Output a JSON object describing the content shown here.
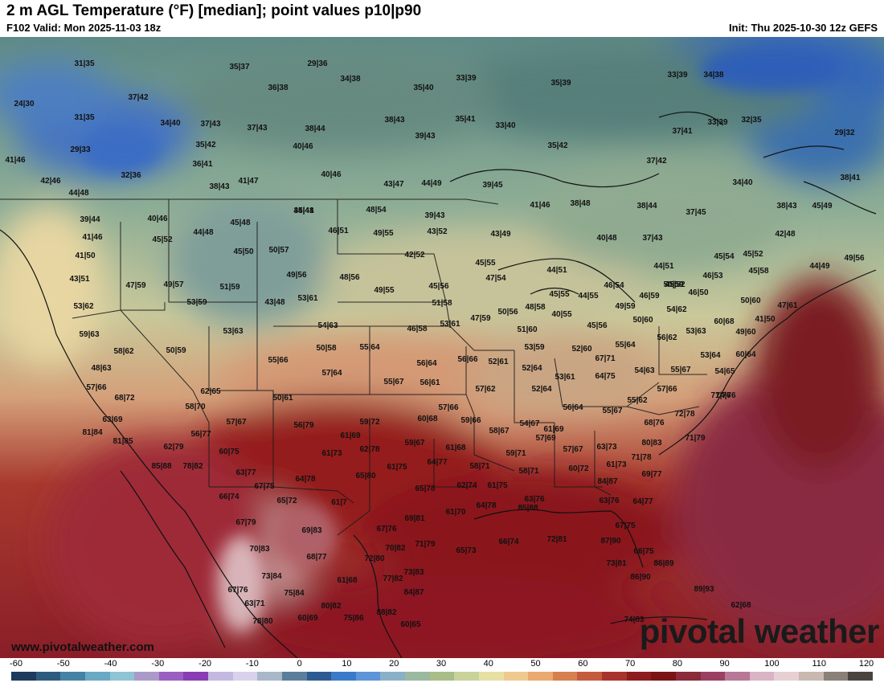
{
  "header": {
    "title": "2 m AGL Temperature (°F) [median]; point values p10|p90",
    "valid": "F102 Valid: Mon 2025-11-03 18z",
    "init": "Init: Thu 2025-10-30 12z GEFS"
  },
  "footer": {
    "website": "www.pivotalweather.com",
    "brand": "pivotal weather"
  },
  "colorbar": {
    "unit_range": [
      -60,
      120
    ],
    "labels": [
      "-60",
      "-50",
      "-40",
      "-30",
      "-20",
      "-10",
      "0",
      "10",
      "20",
      "30",
      "40",
      "50",
      "60",
      "70",
      "80",
      "90",
      "100",
      "110",
      "120"
    ],
    "colors": [
      "#1e3a5c",
      "#2d5b7e",
      "#4682a5",
      "#6aa8c4",
      "#8fc4d4",
      "#aa9ac8",
      "#9a5fc0",
      "#8a3cb4",
      "#c3b9e0",
      "#d8d3ea",
      "#a9b8c8",
      "#5b7e9a",
      "#2e5a92",
      "#3b7ac8",
      "#5e94d8",
      "#8ab0c8",
      "#9bb8a0",
      "#a8bd88",
      "#c9d29a",
      "#e7e0a4",
      "#f0c98e",
      "#e9a96f",
      "#d6804f",
      "#c65a3c",
      "#a8342c",
      "#8e1c1c",
      "#7a1414",
      "#8a2a3a",
      "#9a4060",
      "#b87898",
      "#d8b4c4",
      "#e6d0d4",
      "#c8b8b0",
      "#8a8078",
      "#4a4440"
    ]
  },
  "map_points": [
    {
      "label": "31|35"
    },
    {
      "label": "35|37"
    },
    {
      "label": "29|36"
    },
    {
      "label": "34|38"
    },
    {
      "label": "35|40"
    },
    {
      "label": "33|39"
    },
    {
      "label": "35|39"
    },
    {
      "label": "33|39"
    },
    {
      "label": "34|38"
    },
    {
      "label": "24|30"
    },
    {
      "label": "37|42"
    },
    {
      "label": "36|38"
    },
    {
      "label": "38|43"
    },
    {
      "label": "35|41"
    },
    {
      "label": "33|40"
    },
    {
      "label": "37|41"
    },
    {
      "label": "33|39"
    },
    {
      "label": "32|35"
    },
    {
      "label": "29|32"
    },
    {
      "label": "31|35"
    },
    {
      "label": "34|40"
    },
    {
      "label": "37|43"
    },
    {
      "label": "37|43"
    },
    {
      "label": "38|44"
    },
    {
      "label": "39|43"
    },
    {
      "label": "29|33"
    },
    {
      "label": "35|42"
    },
    {
      "label": "40|46"
    },
    {
      "label": "35|42"
    },
    {
      "label": "41|46"
    },
    {
      "label": "36|41"
    },
    {
      "label": "37|42"
    },
    {
      "label": "32|36"
    },
    {
      "label": "40|46"
    },
    {
      "label": "43|47"
    },
    {
      "label": "44|49"
    },
    {
      "label": "39|45"
    },
    {
      "label": "34|40"
    },
    {
      "label": "38|41"
    },
    {
      "label": "42|46"
    },
    {
      "label": "38|43"
    },
    {
      "label": "41|47"
    },
    {
      "label": "44|48"
    },
    {
      "label": "44|48"
    },
    {
      "label": "48|54"
    },
    {
      "label": "39|43"
    },
    {
      "label": "41|46"
    },
    {
      "label": "38|48"
    },
    {
      "label": "38|44"
    },
    {
      "label": "37|45"
    },
    {
      "label": "38|43"
    },
    {
      "label": "45|49"
    },
    {
      "label": "39|44"
    },
    {
      "label": "40|46"
    },
    {
      "label": "45|48"
    },
    {
      "label": "35|41"
    },
    {
      "label": "44|48"
    },
    {
      "label": "46|51"
    },
    {
      "label": "49|55"
    },
    {
      "label": "43|52"
    },
    {
      "label": "43|49"
    },
    {
      "label": "40|48"
    },
    {
      "label": "37|43"
    },
    {
      "label": "42|48"
    },
    {
      "label": "41|46"
    },
    {
      "label": "45|52"
    },
    {
      "label": "41|50"
    },
    {
      "label": "45|50"
    },
    {
      "label": "50|57"
    },
    {
      "label": "42|52"
    },
    {
      "label": "45|54"
    },
    {
      "label": "45|52"
    },
    {
      "label": "44|49"
    },
    {
      "label": "49|56"
    },
    {
      "label": "45|55"
    },
    {
      "label": "44|51"
    },
    {
      "label": "44|51"
    },
    {
      "label": "45|58"
    },
    {
      "label": "43|51"
    },
    {
      "label": "49|56"
    },
    {
      "label": "48|56"
    },
    {
      "label": "47|54"
    },
    {
      "label": "46|53"
    },
    {
      "label": "45|52"
    },
    {
      "label": "47|59"
    },
    {
      "label": "49|57"
    },
    {
      "label": "51|59"
    },
    {
      "label": "45|56"
    },
    {
      "label": "46|54"
    },
    {
      "label": "50|59"
    },
    {
      "label": "49|55"
    },
    {
      "label": "45|55"
    },
    {
      "label": "44|55"
    },
    {
      "label": "46|59"
    },
    {
      "label": "46|50"
    },
    {
      "label": "43|48"
    },
    {
      "label": "53|61"
    },
    {
      "label": "51|58"
    },
    {
      "label": "48|58"
    },
    {
      "label": "49|59"
    },
    {
      "label": "50|60"
    },
    {
      "label": "47|61"
    },
    {
      "label": "53|62"
    },
    {
      "label": "53|59"
    },
    {
      "label": "50|56"
    },
    {
      "label": "40|55"
    },
    {
      "label": "54|62"
    },
    {
      "label": "53|61"
    },
    {
      "label": "47|59"
    },
    {
      "label": "50|60"
    },
    {
      "label": "41|50"
    },
    {
      "label": "54|63"
    },
    {
      "label": "51|60"
    },
    {
      "label": "45|56"
    },
    {
      "label": "60|68"
    },
    {
      "label": "59|63"
    },
    {
      "label": "53|63"
    },
    {
      "label": "46|58"
    },
    {
      "label": "53|63"
    },
    {
      "label": "49|60"
    },
    {
      "label": "56|62"
    },
    {
      "label": "58|62"
    },
    {
      "label": "50|59"
    },
    {
      "label": "50|58"
    },
    {
      "label": "55|64"
    },
    {
      "label": "53|59"
    },
    {
      "label": "52|60"
    },
    {
      "label": "55|64"
    },
    {
      "label": "53|64"
    },
    {
      "label": "60|64"
    },
    {
      "label": "55|66"
    },
    {
      "label": "56|64"
    },
    {
      "label": "56|66"
    },
    {
      "label": "52|61"
    },
    {
      "label": "67|71"
    },
    {
      "label": "48|63"
    },
    {
      "label": "57|64"
    },
    {
      "label": "52|64"
    },
    {
      "label": "54|63"
    },
    {
      "label": "55|67"
    },
    {
      "label": "54|65"
    },
    {
      "label": "55|67"
    },
    {
      "label": "56|61"
    },
    {
      "label": "53|61"
    },
    {
      "label": "64|75"
    },
    {
      "label": "57|66"
    },
    {
      "label": "57|62"
    },
    {
      "label": "52|64"
    },
    {
      "label": "57|66"
    },
    {
      "label": "71|76"
    },
    {
      "label": "68|72"
    },
    {
      "label": "62|65"
    },
    {
      "label": "50|61"
    },
    {
      "label": "55|62"
    },
    {
      "label": "74|76"
    },
    {
      "label": "58|70"
    },
    {
      "label": "57|66"
    },
    {
      "label": "56|64"
    },
    {
      "label": "55|67"
    },
    {
      "label": "72|78"
    },
    {
      "label": "63|69"
    },
    {
      "label": "57|67"
    },
    {
      "label": "56|79"
    },
    {
      "label": "59|72"
    },
    {
      "label": "60|68"
    },
    {
      "label": "59|66"
    },
    {
      "label": "54|67"
    },
    {
      "label": "68|76"
    },
    {
      "label": "81|84"
    },
    {
      "label": "56|77"
    },
    {
      "label": "61|69"
    },
    {
      "label": "58|67"
    },
    {
      "label": "61|69"
    },
    {
      "label": "71|79"
    },
    {
      "label": "81|85"
    },
    {
      "label": "62|79"
    },
    {
      "label": "62|78"
    },
    {
      "label": "59|67"
    },
    {
      "label": "57|69"
    },
    {
      "label": "80|83"
    },
    {
      "label": "60|75"
    },
    {
      "label": "61|73"
    },
    {
      "label": "61|68"
    },
    {
      "label": "59|71"
    },
    {
      "label": "57|67"
    },
    {
      "label": "63|73"
    },
    {
      "label": "71|78"
    },
    {
      "label": "85|88"
    },
    {
      "label": "78|82"
    },
    {
      "label": "63|77"
    },
    {
      "label": "61|75"
    },
    {
      "label": "64|77"
    },
    {
      "label": "58|71"
    },
    {
      "label": "58|71"
    },
    {
      "label": "60|72"
    },
    {
      "label": "61|73"
    },
    {
      "label": "69|77"
    },
    {
      "label": "67|75"
    },
    {
      "label": "64|78"
    },
    {
      "label": "65|80"
    },
    {
      "label": "65|78"
    },
    {
      "label": "62|74"
    },
    {
      "label": "61|75"
    },
    {
      "label": "84|87"
    },
    {
      "label": "66|74"
    },
    {
      "label": "65|72"
    },
    {
      "label": "61|7"
    },
    {
      "label": "63|76"
    },
    {
      "label": "63|76"
    },
    {
      "label": "64|77"
    },
    {
      "label": "64|78"
    },
    {
      "label": "61|70"
    },
    {
      "label": "85|88"
    },
    {
      "label": "67|79"
    },
    {
      "label": "69|81"
    },
    {
      "label": "67|75"
    },
    {
      "label": "69|83"
    },
    {
      "label": "67|76"
    },
    {
      "label": "65|73"
    },
    {
      "label": "66|74"
    },
    {
      "label": "72|81"
    },
    {
      "label": "87|90"
    },
    {
      "label": "70|83"
    },
    {
      "label": "70|82"
    },
    {
      "label": "71|79"
    },
    {
      "label": "66|75"
    },
    {
      "label": "68|77"
    },
    {
      "label": "72|80"
    },
    {
      "label": "73|81"
    },
    {
      "label": "86|89"
    },
    {
      "label": "73|84"
    },
    {
      "label": "73|83"
    },
    {
      "label": "86|90"
    },
    {
      "label": "67|76"
    },
    {
      "label": "61|68"
    },
    {
      "label": "77|82"
    },
    {
      "label": "89|93"
    },
    {
      "label": "75|84"
    },
    {
      "label": "84|87"
    },
    {
      "label": "63|71"
    },
    {
      "label": "80|82"
    },
    {
      "label": "62|68"
    },
    {
      "label": "88|82"
    },
    {
      "label": "78|80"
    },
    {
      "label": "60|69"
    },
    {
      "label": "75|86"
    },
    {
      "label": "74|83"
    },
    {
      "label": "60|65"
    }
  ]
}
